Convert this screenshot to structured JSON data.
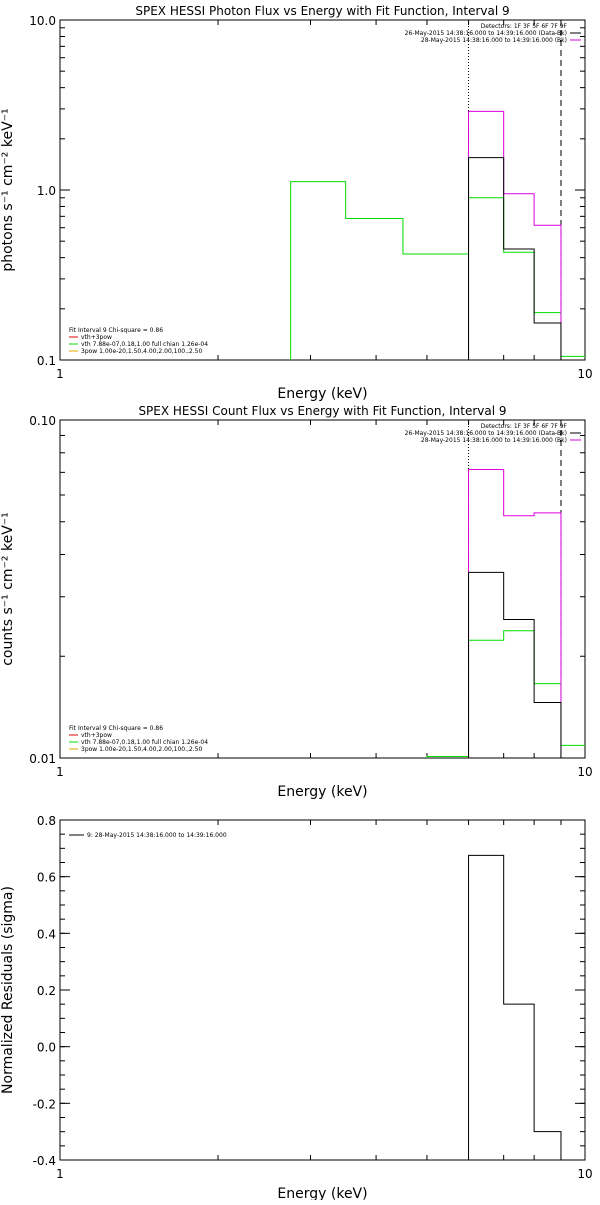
{
  "chart_data": [
    {
      "type": "line",
      "title": "SPEX HESSI Photon Flux vs Energy with Fit Function, Interval 9",
      "xlabel": "Energy (keV)",
      "ylabel": "photons s⁻¹ cm⁻² keV⁻¹",
      "xlim": [
        1,
        10
      ],
      "ylim": [
        0.1,
        10
      ],
      "xscale": "log",
      "yscale": "log",
      "xticks": [
        1,
        10
      ],
      "xtick_labels": [
        "1",
        "10"
      ],
      "yticks": [
        0.1,
        1,
        10
      ],
      "ytick_labels": [
        "0.1",
        "1.0",
        "10.0"
      ],
      "legend_topright": [
        "Detectors: 1F 3F 5F 6F 7F 9F",
        "26-May-2015 14:38:16.000 to 14:39:16.000 (Data-Bk)",
        "28-May-2015 14:38:16.000 to 14:39:16.000 (Bk)"
      ],
      "legend_bottomleft": [
        "Fit Interval  9    Chi-square = 0.86",
        "vth+3pow",
        "vth  7.88e-07,0.18,1.00   full chian 1.26e-04",
        "3pow  1.00e-20,1.50,4.00,2.00,100.,2.50"
      ],
      "vlines_dotted": [
        6.0
      ],
      "vlines_dashed": [
        9.0
      ],
      "series": [
        {
          "color": "#00dd00",
          "edges": [
            2.75,
            3.5,
            4.5,
            6.0,
            7.0,
            8.0,
            9.0,
            10.0
          ],
          "values": [
            1.12,
            0.68,
            0.42,
            0.9,
            0.43,
            0.19,
            0.105
          ]
        },
        {
          "color": "#dd00dd",
          "edges": [
            6.0,
            7.0,
            8.0,
            9.0
          ],
          "values": [
            2.9,
            0.95,
            0.62
          ]
        },
        {
          "color": "#000000",
          "edges": [
            6.0,
            7.0,
            8.0,
            9.0
          ],
          "values": [
            1.55,
            0.45,
            0.165
          ]
        }
      ]
    },
    {
      "type": "line",
      "title": "SPEX HESSI Count Flux vs Energy with Fit Function, Interval 9",
      "xlabel": "Energy (keV)",
      "ylabel": "counts s⁻¹ cm⁻² keV⁻¹",
      "xlim": [
        1,
        10
      ],
      "ylim": [
        0.01,
        0.1
      ],
      "xscale": "log",
      "yscale": "log",
      "xticks": [
        1,
        10
      ],
      "xtick_labels": [
        "1",
        "10"
      ],
      "yticks": [
        0.01,
        0.1
      ],
      "ytick_labels": [
        "0.01",
        "0.10"
      ],
      "legend_topright": [
        "Detectors: 1F 3F 5F 6F 7F 9F",
        "26-May-2015 14:38:16.000 to 14:39:16.000 (Data-Bk)",
        "28-May-2015 14:38:16.000 to 14:39:16.000 (Bk)"
      ],
      "legend_bottomleft": [
        "Fit Interval  9    Chi-square = 0.86",
        "vth+3pow",
        "vth  7.88e-07,0.18,1.00   full chian 1.26e-04",
        "3pow  1.00e-20,1.50,4.00,2.00,100.,2.50"
      ],
      "vlines_dotted": [
        6.0
      ],
      "vlines_dashed": [
        9.0
      ],
      "series": [
        {
          "color": "#00dd00",
          "edges": [
            5.0,
            6.0,
            7.0,
            8.0,
            9.0,
            10.0
          ],
          "values": [
            0.0101,
            0.0223,
            0.0238,
            0.0166,
            0.0109
          ]
        },
        {
          "color": "#dd00dd",
          "edges": [
            6.0,
            7.0,
            8.0,
            9.0
          ],
          "values": [
            0.0714,
            0.0521,
            0.0531
          ]
        },
        {
          "color": "#000000",
          "edges": [
            6.0,
            7.0,
            8.0,
            9.0
          ],
          "values": [
            0.0354,
            0.0257,
            0.0146
          ]
        }
      ]
    },
    {
      "type": "line",
      "title": "",
      "xlabel": "Energy (keV)",
      "ylabel": "Normalized Residuals (sigma)",
      "xlim": [
        1,
        10
      ],
      "ylim": [
        -0.4,
        0.8
      ],
      "xscale": "log",
      "yscale": "linear",
      "xticks": [
        1,
        10
      ],
      "xtick_labels": [
        "1",
        "10"
      ],
      "yticks": [
        -0.4,
        -0.2,
        0.0,
        0.2,
        0.4,
        0.6,
        0.8
      ],
      "ytick_labels": [
        "-0.4",
        "-0.2",
        "0.0",
        "0.2",
        "0.4",
        "0.6",
        "0.8"
      ],
      "legend_topleft": [
        "9: 28-May-2015 14:38:16.000 to 14:39:16.000"
      ],
      "series": [
        {
          "color": "#000000",
          "edges": [
            6.0,
            7.0,
            8.0,
            9.0
          ],
          "values": [
            0.675,
            0.15,
            -0.3
          ]
        }
      ]
    }
  ]
}
